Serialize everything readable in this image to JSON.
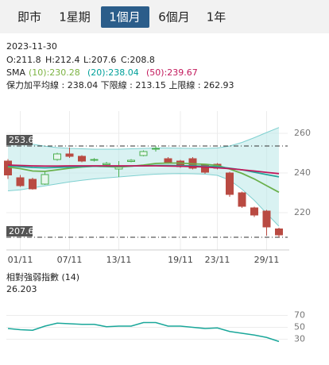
{
  "tabs": [
    "即市",
    "1星期",
    "1個月",
    "6個月",
    "1年"
  ],
  "selected_tab": 2,
  "info": {
    "date": "2023-11-30",
    "ohlc": [
      "O:211.8",
      "H:212.4",
      "L:207.6",
      "C:208.8"
    ],
    "sma_label": "SMA",
    "sma": [
      {
        "text": "(10):230.28",
        "color": "#7cb342"
      },
      {
        "text": "(20):238.04",
        "color": "#00a09a"
      },
      {
        "text": "(50):239.67",
        "color": "#c2185b"
      }
    ],
    "bollinger": "保力加平均線 : 238.04 下限線 : 213.15 上限線 : 262.93"
  },
  "chart_data": [
    {
      "type": "candlestick",
      "categories": [
        null,
        "01/11",
        null,
        null,
        null,
        "07/11",
        null,
        null,
        null,
        "13/11",
        null,
        null,
        null,
        null,
        "19/11",
        null,
        null,
        "23/11",
        null,
        null,
        null,
        "29/11",
        null
      ],
      "open": [
        246,
        237.6,
        236.8,
        234.4,
        246.8,
        249.6,
        248.4,
        246.5,
        244.2,
        242,
        245.8,
        248.8,
        252,
        247.2,
        246,
        247.2,
        244,
        244.4,
        240,
        230,
        222.4,
        220.8,
        211.8
      ],
      "high": [
        247,
        239,
        237.6,
        241,
        250.2,
        252.8,
        249,
        247.5,
        245.6,
        246,
        247,
        251.4,
        253.6,
        248,
        246.6,
        248,
        244.6,
        245,
        240.6,
        230.6,
        223,
        221.4,
        212.4
      ],
      "low": [
        237,
        233,
        231.6,
        234,
        246.2,
        247.6,
        245.4,
        245.8,
        243.8,
        238,
        245.4,
        248.4,
        250.8,
        244.6,
        242.6,
        241.8,
        239.6,
        241.8,
        228,
        222.4,
        217.8,
        208.4,
        207.6
      ],
      "close": [
        239,
        233.6,
        232,
        239.2,
        249.6,
        248.4,
        246,
        246.8,
        244.8,
        243,
        246.4,
        250.8,
        252.4,
        245.2,
        243.2,
        242.4,
        240.4,
        242.4,
        229.2,
        223.2,
        218.8,
        212.8,
        208.8
      ],
      "up_color": "#4caf50",
      "down_color": "#b94a42",
      "series": [
        {
          "color": "#6ab04c",
          "values": [
            243,
            242.2,
            241,
            240.8,
            241.6,
            242.4,
            243,
            243.4,
            243.2,
            243,
            243.4,
            244,
            244.8,
            245,
            245,
            244.6,
            244.4,
            243.8,
            242,
            239.8,
            237,
            233.6,
            230.28
          ]
        },
        {
          "color": "#26a69a",
          "values": [
            243.6,
            243.2,
            242.8,
            242.6,
            242.8,
            243,
            243.2,
            243.4,
            243.4,
            243.4,
            243.5,
            243.6,
            243.8,
            243.8,
            243.7,
            243.6,
            243.4,
            243.2,
            242.4,
            241.6,
            240.4,
            239.2,
            238.04
          ]
        },
        {
          "color": "#c2185b",
          "values": [
            244,
            243.8,
            243.6,
            243.5,
            243.5,
            243.6,
            243.6,
            243.6,
            243.6,
            243.6,
            243.6,
            243.6,
            243.6,
            243.5,
            243.4,
            243.2,
            243,
            242.6,
            242.2,
            241.6,
            241,
            240.3,
            239.67
          ]
        }
      ],
      "band": {
        "color": "#bfe9e9",
        "upper": [
          256.5,
          255.5,
          254.5,
          253.5,
          252.8,
          252.4,
          252.2,
          252,
          252,
          252,
          252.2,
          252.4,
          252.6,
          252.6,
          252.5,
          252.4,
          252.4,
          252.6,
          253.6,
          255.4,
          257.8,
          260.4,
          262.93
        ],
        "lower": [
          231,
          231.5,
          232.5,
          233.5,
          234.5,
          235.5,
          236.3,
          237,
          237.5,
          238,
          238.5,
          239,
          239.4,
          239.6,
          239.7,
          239.6,
          239.4,
          238.8,
          236.4,
          231.8,
          226.2,
          219.6,
          213.15
        ]
      },
      "reference_lines": [
        253.6,
        207.6
      ],
      "ylim": [
        201.2,
        271.2
      ],
      "yticks": [
        220,
        240,
        260
      ],
      "grid": true
    },
    {
      "type": "line",
      "title": "相對強弱指數 (14)",
      "color": "#1aa79a",
      "values": [
        48,
        46,
        45,
        52,
        57,
        56,
        55,
        55,
        51,
        52,
        52,
        58,
        58,
        52,
        52,
        50,
        48,
        49,
        43,
        40,
        37,
        33,
        26.203
      ],
      "ylim": [
        0,
        100
      ],
      "yticks": [
        30,
        50,
        70
      ],
      "grid": true
    }
  ]
}
